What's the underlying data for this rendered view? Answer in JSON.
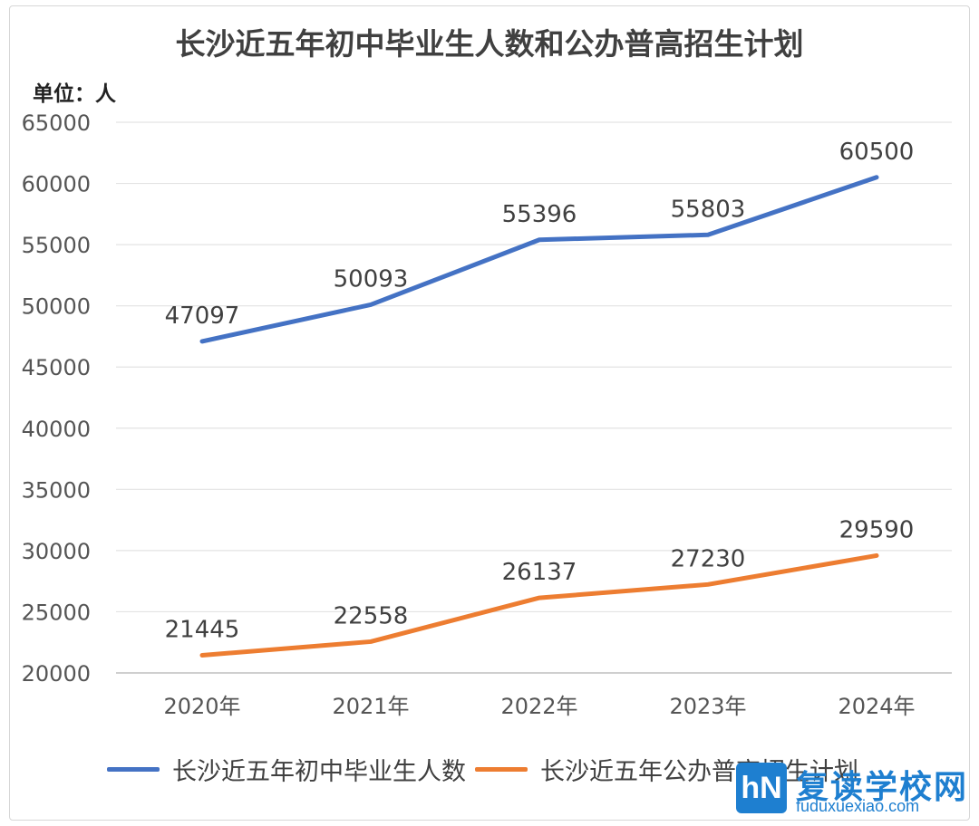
{
  "chart_data": {
    "type": "line",
    "title": "长沙近五年初中毕业生人数和公办普高招生计划",
    "unit_label": "单位：人",
    "categories": [
      "2020年",
      "2021年",
      "2022年",
      "2023年",
      "2024年"
    ],
    "ylim": [
      20000,
      65000
    ],
    "yticks": [
      20000,
      25000,
      30000,
      35000,
      40000,
      45000,
      50000,
      55000,
      60000,
      65000
    ],
    "grid": true,
    "legend_position": "bottom",
    "series": [
      {
        "name": "长沙近五年初中毕业生人数",
        "color": "#4472c4",
        "values": [
          47097,
          50093,
          55396,
          55803,
          60500
        ]
      },
      {
        "name": "长沙近五年公办普高招生计划",
        "color": "#ed7d31",
        "values": [
          21445,
          22558,
          26137,
          27230,
          29590
        ]
      }
    ]
  },
  "watermark": {
    "logo_text": "hN",
    "name": "复读学校网",
    "url": "fuduxuexiao.com"
  }
}
